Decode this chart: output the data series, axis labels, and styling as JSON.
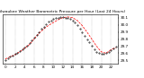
{
  "title": "Milwaukee Weather Barometric Pressure per Hour (Last 24 Hours)",
  "hours": [
    0,
    1,
    2,
    3,
    4,
    5,
    6,
    7,
    8,
    9,
    10,
    11,
    12,
    13,
    14,
    15,
    16,
    17,
    18,
    19,
    20,
    21,
    22,
    23
  ],
  "pressure": [
    29.52,
    29.55,
    29.58,
    29.62,
    29.67,
    29.72,
    29.8,
    29.88,
    29.94,
    29.99,
    30.03,
    30.07,
    30.1,
    30.11,
    30.1,
    30.06,
    29.99,
    29.9,
    29.8,
    29.7,
    29.62,
    29.6,
    29.65,
    29.68
  ],
  "scatter_x": [
    0,
    0.5,
    1,
    1.5,
    2,
    2.5,
    3,
    3.5,
    4,
    4.5,
    5,
    5.5,
    6,
    6.5,
    7,
    7.5,
    8,
    8.5,
    9,
    9.5,
    10,
    10.5,
    11,
    11.5,
    12,
    12.5,
    13,
    13.5,
    14,
    14.5,
    15,
    15.5,
    16,
    16.5,
    17,
    17.5,
    18,
    18.5,
    19,
    19.5,
    20,
    20.5,
    21,
    21.5,
    22,
    22.5,
    23
  ],
  "scatter_y": [
    29.5,
    29.53,
    29.55,
    29.57,
    29.59,
    29.61,
    29.63,
    29.65,
    29.68,
    29.71,
    29.74,
    29.78,
    29.82,
    29.86,
    29.9,
    29.94,
    29.97,
    30.01,
    30.04,
    30.06,
    30.08,
    30.09,
    30.1,
    30.11,
    30.11,
    30.1,
    30.1,
    30.08,
    30.06,
    30.03,
    29.99,
    29.95,
    29.9,
    29.85,
    29.8,
    29.75,
    29.7,
    29.66,
    29.62,
    29.6,
    29.59,
    29.59,
    29.6,
    29.62,
    29.64,
    29.67,
    29.69
  ],
  "ylim": [
    29.45,
    30.15
  ],
  "yticks": [
    29.5,
    29.6,
    29.7,
    29.8,
    29.9,
    30.0,
    30.1
  ],
  "ytick_labels": [
    "29.5",
    "29.6",
    "29.7",
    "29.8",
    "29.9",
    "30.0",
    "30.1"
  ],
  "xticks": [
    0,
    2,
    4,
    6,
    8,
    10,
    12,
    14,
    16,
    18,
    20,
    22
  ],
  "xtick_labels": [
    "0",
    "2",
    "4",
    "6",
    "8",
    "10",
    "12",
    "14",
    "16",
    "18",
    "20",
    "22"
  ],
  "xlim": [
    -0.5,
    23.5
  ],
  "line_color": "#ff0000",
  "dot_color": "#000000",
  "bg_color": "#ffffff",
  "grid_color": "#888888",
  "title_fontsize": 3.2,
  "tick_fontsize": 3.0,
  "line_width": 0.5,
  "dot_size": 0.6
}
